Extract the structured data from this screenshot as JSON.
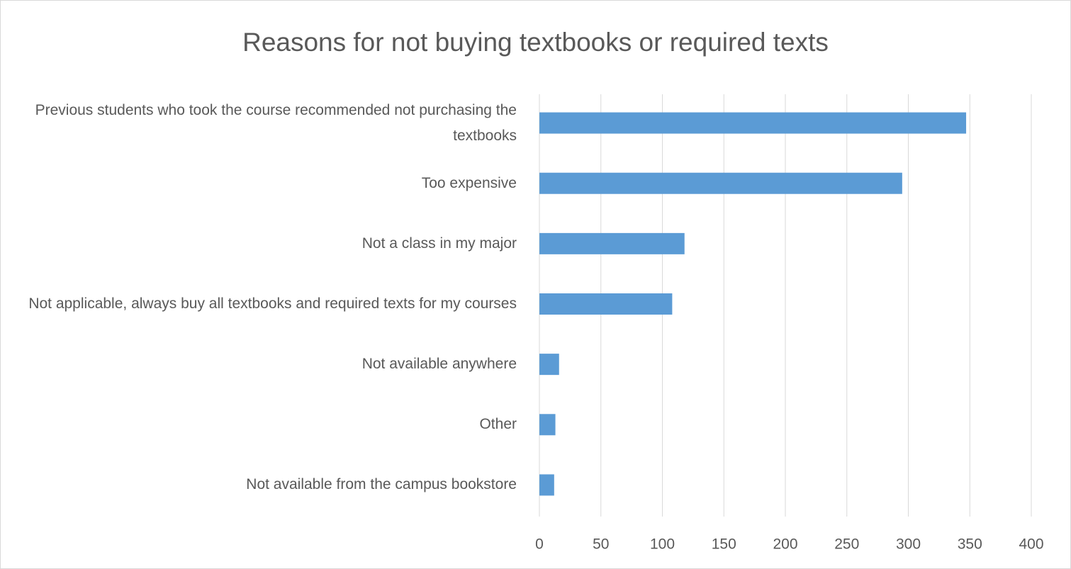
{
  "chart_data": {
    "type": "bar",
    "orientation": "horizontal",
    "title": "Reasons for not buying textbooks or required texts",
    "categories": [
      "Previous students who took the course recommended not purchasing the textbooks",
      "Too expensive",
      "Not a class in my major",
      "Not applicable, always buy all textbooks and required texts for my courses",
      "Not available anywhere",
      "Other",
      "Not available from the campus bookstore"
    ],
    "values": [
      347,
      295,
      118,
      108,
      16,
      13,
      12
    ],
    "color": "#5b9bd5",
    "xlim": [
      0,
      400
    ],
    "xticks": [
      0,
      50,
      100,
      150,
      200,
      250,
      300,
      350,
      400
    ],
    "grid": true
  }
}
